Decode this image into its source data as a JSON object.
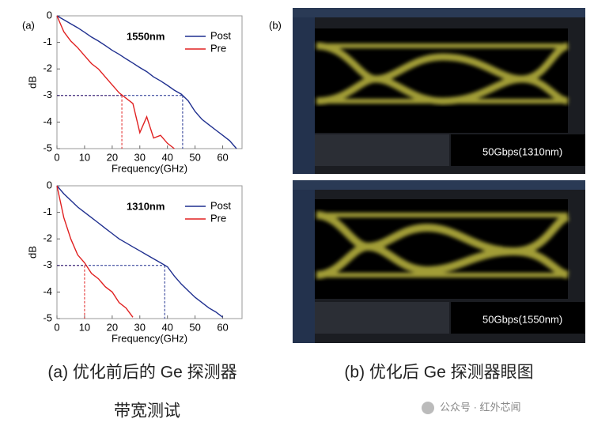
{
  "chart_data": [
    {
      "type": "line",
      "annotation": "1550nm",
      "xlabel": "Frequency(GHz)",
      "ylabel": "dB",
      "x": [
        0,
        2.5,
        5,
        7.5,
        10,
        12.5,
        15,
        17.5,
        20,
        22.5,
        25,
        27.5,
        30,
        32.5,
        35,
        37.5,
        40,
        42.5,
        45,
        47.5,
        50,
        52.5,
        55,
        57.5,
        60,
        62.5,
        65
      ],
      "series": [
        {
          "name": "Post",
          "color": "#1f2f8f",
          "values": [
            0,
            -0.15,
            -0.3,
            -0.45,
            -0.62,
            -0.8,
            -0.95,
            -1.12,
            -1.3,
            -1.45,
            -1.62,
            -1.78,
            -1.95,
            -2.1,
            -2.3,
            -2.45,
            -2.62,
            -2.8,
            -2.95,
            -3.2,
            -3.6,
            -3.9,
            -4.1,
            -4.3,
            -4.5,
            -4.7,
            -5
          ]
        },
        {
          "name": "Pre",
          "color": "#e02020",
          "values": [
            0,
            -0.6,
            -0.95,
            -1.2,
            -1.5,
            -1.8,
            -2.0,
            -2.3,
            -2.6,
            -2.9,
            -3.1,
            -3.3,
            -4.4,
            -3.8,
            -4.6,
            -4.5,
            -4.8,
            -5,
            null,
            null,
            null,
            null,
            null,
            null,
            null,
            null,
            null
          ]
        }
      ],
      "cutoff": [
        {
          "x": 23.5,
          "y": -3,
          "color": "#e02020"
        },
        {
          "x": 45.5,
          "y": -3,
          "color": "#1f2f8f"
        }
      ],
      "xlim": [
        0,
        67
      ],
      "ylim": [
        -5,
        0
      ],
      "xticks": [
        0,
        10,
        20,
        30,
        40,
        50,
        60
      ],
      "yticks": [
        0,
        -1,
        -2,
        -3,
        -4,
        -5
      ],
      "legend": "upper right"
    },
    {
      "type": "line",
      "annotation": "1310nm",
      "xlabel": "Frequency(GHz)",
      "ylabel": "dB",
      "x": [
        0,
        2.5,
        5,
        7.5,
        10,
        12.5,
        15,
        17.5,
        20,
        22.5,
        25,
        27.5,
        30,
        32.5,
        35,
        37.5,
        40,
        42.5,
        45,
        47.5,
        50,
        52.5,
        55,
        57.5,
        60,
        62.5,
        65
      ],
      "series": [
        {
          "name": "Post",
          "color": "#1f2f8f",
          "values": [
            0,
            -0.3,
            -0.55,
            -0.8,
            -1.0,
            -1.2,
            -1.4,
            -1.6,
            -1.8,
            -2.0,
            -2.15,
            -2.3,
            -2.45,
            -2.6,
            -2.75,
            -2.9,
            -3.05,
            -3.4,
            -3.7,
            -3.95,
            -4.2,
            -4.4,
            -4.6,
            -4.75,
            -4.95,
            null,
            null
          ]
        },
        {
          "name": "Pre",
          "color": "#e02020",
          "values": [
            0,
            -1.2,
            -2.0,
            -2.6,
            -2.9,
            -3.3,
            -3.5,
            -3.8,
            -4.0,
            -4.4,
            -4.6,
            -4.95,
            null,
            null,
            null,
            null,
            null,
            null,
            null,
            null,
            null,
            null,
            null,
            null,
            null,
            null,
            null
          ]
        }
      ],
      "cutoff": [
        {
          "x": 10,
          "y": -3,
          "color": "#e02020"
        },
        {
          "x": 39,
          "y": -3,
          "color": "#1f2f8f"
        }
      ],
      "xlim": [
        0,
        67
      ],
      "ylim": [
        -5,
        0
      ],
      "xticks": [
        0,
        10,
        20,
        30,
        40,
        50,
        60
      ],
      "yticks": [
        0,
        -1,
        -2,
        -3,
        -4,
        -5
      ],
      "legend": "upper right"
    }
  ],
  "panel_labels": [
    "(a)",
    "(b)"
  ],
  "eye_diagrams": [
    "50Gbps(1310nm)",
    "50Gbps(1550nm)"
  ],
  "captions": [
    "(a) 优化前后的 Ge 探测器",
    "带宽测试",
    "(b) 优化后 Ge 探测器眼图"
  ],
  "watermark": "公众号 · 红外芯闻"
}
